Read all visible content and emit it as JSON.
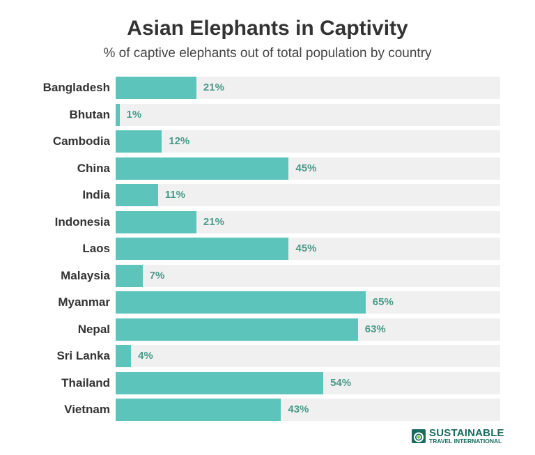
{
  "header": {
    "title": "Asian Elephants in Captivity",
    "subtitle": "% of captive elephants out of total population by country"
  },
  "colors": {
    "bar": "#5dc4bb",
    "track": "#f0f0f0",
    "value_text": "#4a9a8a",
    "label_text": "#333333",
    "logo": "#1a6b5f"
  },
  "logo": {
    "line1": "SUSTAINABLE",
    "line2": "TRAVEL INTERNATIONAL"
  },
  "chart_data": {
    "type": "bar",
    "orientation": "horizontal",
    "title": "Asian Elephants in Captivity",
    "subtitle": "% of captive elephants out of total population by country",
    "xlabel": "",
    "ylabel": "",
    "xlim": [
      0,
      100
    ],
    "grid": false,
    "legend": null,
    "categories": [
      "Bangladesh",
      "Bhutan",
      "Cambodia",
      "China",
      "India",
      "Indonesia",
      "Laos",
      "Malaysia",
      "Myanmar",
      "Nepal",
      "Sri Lanka",
      "Thailand",
      "Vietnam"
    ],
    "values": [
      21,
      1,
      12,
      45,
      11,
      21,
      45,
      7,
      65,
      63,
      4,
      54,
      43
    ],
    "value_labels": [
      "21%",
      "1%",
      "12%",
      "45%",
      "11%",
      "21%",
      "45%",
      "7%",
      "65%",
      "63%",
      "4%",
      "54%",
      "43%"
    ]
  }
}
